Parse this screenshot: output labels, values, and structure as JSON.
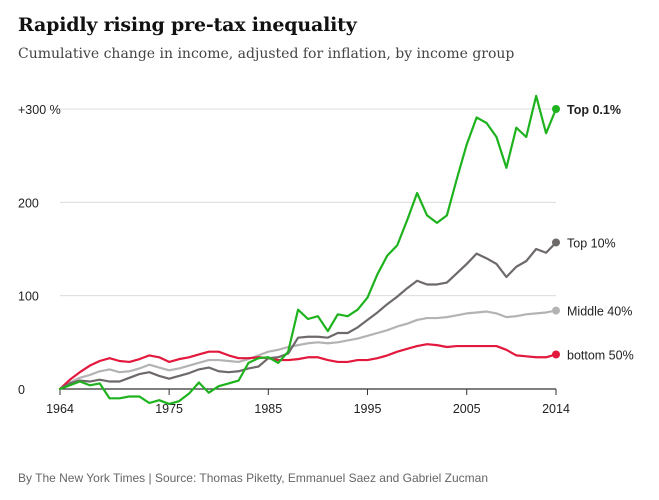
{
  "title": "Rapidly rising pre-tax inequality",
  "subtitle": "Cumulative change in income, adjusted for inflation, by income group",
  "source": "By The New York Times | Source: Thomas Piketty, Emmanuel Saez and Gabriel Zucman",
  "chart_data": {
    "type": "line",
    "x_range": [
      1964,
      2014
    ],
    "ylim": [
      0,
      300
    ],
    "x_ticks": [
      {
        "value": 1964,
        "label": "1964"
      },
      {
        "value": 1975,
        "label": "1975"
      },
      {
        "value": 1985,
        "label": "1985"
      },
      {
        "value": 1995,
        "label": "1995"
      },
      {
        "value": 2005,
        "label": "2005"
      },
      {
        "value": 2014,
        "label": "2014"
      }
    ],
    "y_ticks": [
      {
        "value": 0,
        "label": "0"
      },
      {
        "value": 100,
        "label": "100"
      },
      {
        "value": 200,
        "label": "200"
      },
      {
        "value": 300,
        "label": "+300 %"
      }
    ],
    "grid": true,
    "series": [
      {
        "name": "Middle 40%",
        "color": "#b3b3b3",
        "label_bold": false,
        "x": [
          1964,
          1965,
          1966,
          1967,
          1968,
          1969,
          1970,
          1971,
          1972,
          1973,
          1974,
          1975,
          1976,
          1977,
          1978,
          1979,
          1980,
          1981,
          1982,
          1983,
          1984,
          1985,
          1986,
          1987,
          1988,
          1989,
          1990,
          1991,
          1992,
          1993,
          1994,
          1995,
          1996,
          1997,
          1998,
          1999,
          2000,
          2001,
          2002,
          2003,
          2004,
          2005,
          2006,
          2007,
          2008,
          2009,
          2010,
          2011,
          2012,
          2013,
          2014
        ],
        "values": [
          0,
          7,
          12,
          15,
          19,
          21,
          18,
          19,
          22,
          26,
          23,
          20,
          22,
          25,
          28,
          31,
          31,
          30,
          29,
          32,
          36,
          40,
          42,
          45,
          47,
          49,
          50,
          49,
          50,
          52,
          54,
          57,
          60,
          63,
          67,
          70,
          74,
          76,
          76,
          77,
          79,
          81,
          82,
          83,
          81,
          77,
          78,
          80,
          81,
          82,
          84
        ]
      },
      {
        "name": "bottom 50%",
        "color": "#e3183d",
        "label_bold": false,
        "x": [
          1964,
          1965,
          1966,
          1967,
          1968,
          1969,
          1970,
          1971,
          1972,
          1973,
          1974,
          1975,
          1976,
          1977,
          1978,
          1979,
          1980,
          1981,
          1982,
          1983,
          1984,
          1985,
          1986,
          1987,
          1988,
          1989,
          1990,
          1991,
          1992,
          1993,
          1994,
          1995,
          1996,
          1997,
          1998,
          1999,
          2000,
          2001,
          2002,
          2003,
          2004,
          2005,
          2006,
          2007,
          2008,
          2009,
          2010,
          2011,
          2012,
          2013,
          2014
        ],
        "values": [
          0,
          10,
          18,
          25,
          30,
          33,
          30,
          29,
          32,
          36,
          34,
          29,
          32,
          34,
          37,
          40,
          40,
          36,
          33,
          33,
          34,
          33,
          31,
          31,
          32,
          34,
          34,
          31,
          29,
          29,
          31,
          31,
          33,
          36,
          40,
          43,
          46,
          48,
          47,
          45,
          46,
          46,
          46,
          46,
          46,
          42,
          36,
          35,
          34,
          34,
          37
        ]
      },
      {
        "name": "Top 10%",
        "color": "#6e6a69",
        "label_bold": false,
        "x": [
          1964,
          1965,
          1966,
          1967,
          1968,
          1969,
          1970,
          1971,
          1972,
          1973,
          1974,
          1975,
          1976,
          1977,
          1978,
          1979,
          1980,
          1981,
          1982,
          1983,
          1984,
          1985,
          1986,
          1987,
          1988,
          1989,
          1990,
          1991,
          1992,
          1993,
          1994,
          1995,
          1996,
          1997,
          1998,
          1999,
          2000,
          2001,
          2002,
          2003,
          2004,
          2005,
          2006,
          2007,
          2008,
          2009,
          2010,
          2011,
          2012,
          2013,
          2014
        ],
        "values": [
          0,
          6,
          9,
          8,
          10,
          8,
          8,
          12,
          16,
          18,
          14,
          11,
          14,
          17,
          21,
          23,
          19,
          18,
          19,
          22,
          24,
          33,
          34,
          38,
          55,
          56,
          56,
          55,
          60,
          60,
          66,
          74,
          82,
          91,
          99,
          108,
          116,
          112,
          112,
          114,
          124,
          134,
          145,
          140,
          134,
          120,
          131,
          137,
          150,
          146,
          157
        ]
      },
      {
        "name": "Top 0.1%",
        "color": "#1eb31e",
        "label_bold": true,
        "x": [
          1964,
          1965,
          1966,
          1967,
          1968,
          1969,
          1970,
          1971,
          1972,
          1973,
          1974,
          1975,
          1976,
          1977,
          1978,
          1979,
          1980,
          1981,
          1982,
          1983,
          1984,
          1985,
          1986,
          1987,
          1988,
          1989,
          1990,
          1991,
          1992,
          1993,
          1994,
          1995,
          1996,
          1997,
          1998,
          1999,
          2000,
          2001,
          2002,
          2003,
          2004,
          2005,
          2006,
          2007,
          2008,
          2009,
          2010,
          2011,
          2012,
          2013,
          2014
        ],
        "values": [
          0,
          4,
          8,
          4,
          6,
          -10,
          -10,
          -8,
          -8,
          -15,
          -12,
          -16,
          -13,
          -5,
          7,
          -4,
          3,
          6,
          9,
          28,
          33,
          34,
          28,
          40,
          85,
          75,
          78,
          62,
          80,
          78,
          85,
          98,
          123,
          143,
          154,
          181,
          210,
          186,
          178,
          186,
          225,
          262,
          291,
          285,
          270,
          237,
          280,
          270,
          314,
          274,
          300
        ]
      }
    ]
  }
}
